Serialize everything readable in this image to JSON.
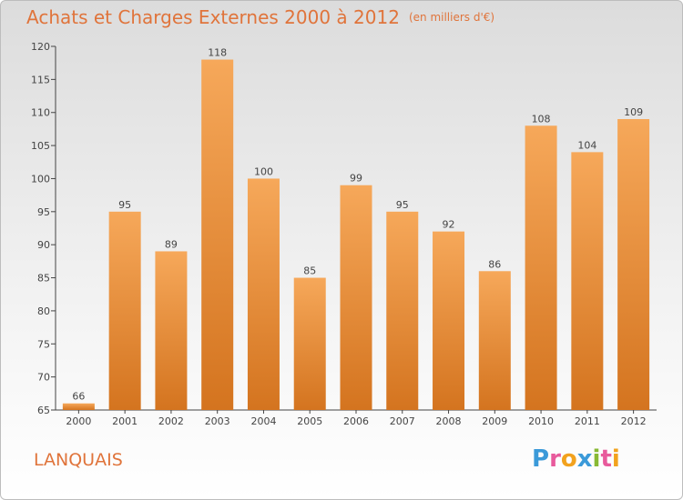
{
  "header": {
    "title": "Achats et Charges Externes 2000 à 2012",
    "unit": "(en milliers d'€)"
  },
  "footer": {
    "commune": "LANQUAIS",
    "logo_letters": [
      "P",
      "r",
      "o",
      "x",
      "i",
      "t",
      "i"
    ],
    "logo_colors": [
      "#3b9ad9",
      "#e85a9c",
      "#f2a21e",
      "#3b9ad9",
      "#88b934",
      "#e85a9c",
      "#f2a21e"
    ]
  },
  "colors": {
    "bar_top": "#f6a85a",
    "bar_bottom": "#d4741f",
    "text_accent": "#e0743b"
  },
  "chart_data": {
    "type": "bar",
    "title": "Achats et Charges Externes 2000 à 2012",
    "categories": [
      "2000",
      "2001",
      "2002",
      "2003",
      "2004",
      "2005",
      "2006",
      "2007",
      "2008",
      "2009",
      "2010",
      "2011",
      "2012"
    ],
    "values": [
      66,
      95,
      89,
      118,
      100,
      85,
      99,
      95,
      92,
      86,
      108,
      104,
      109
    ],
    "ylim": [
      65,
      120
    ],
    "yticks": [
      65,
      70,
      75,
      80,
      85,
      90,
      95,
      100,
      105,
      110,
      115,
      120
    ],
    "grid": false,
    "xlabel": "",
    "ylabel": ""
  }
}
